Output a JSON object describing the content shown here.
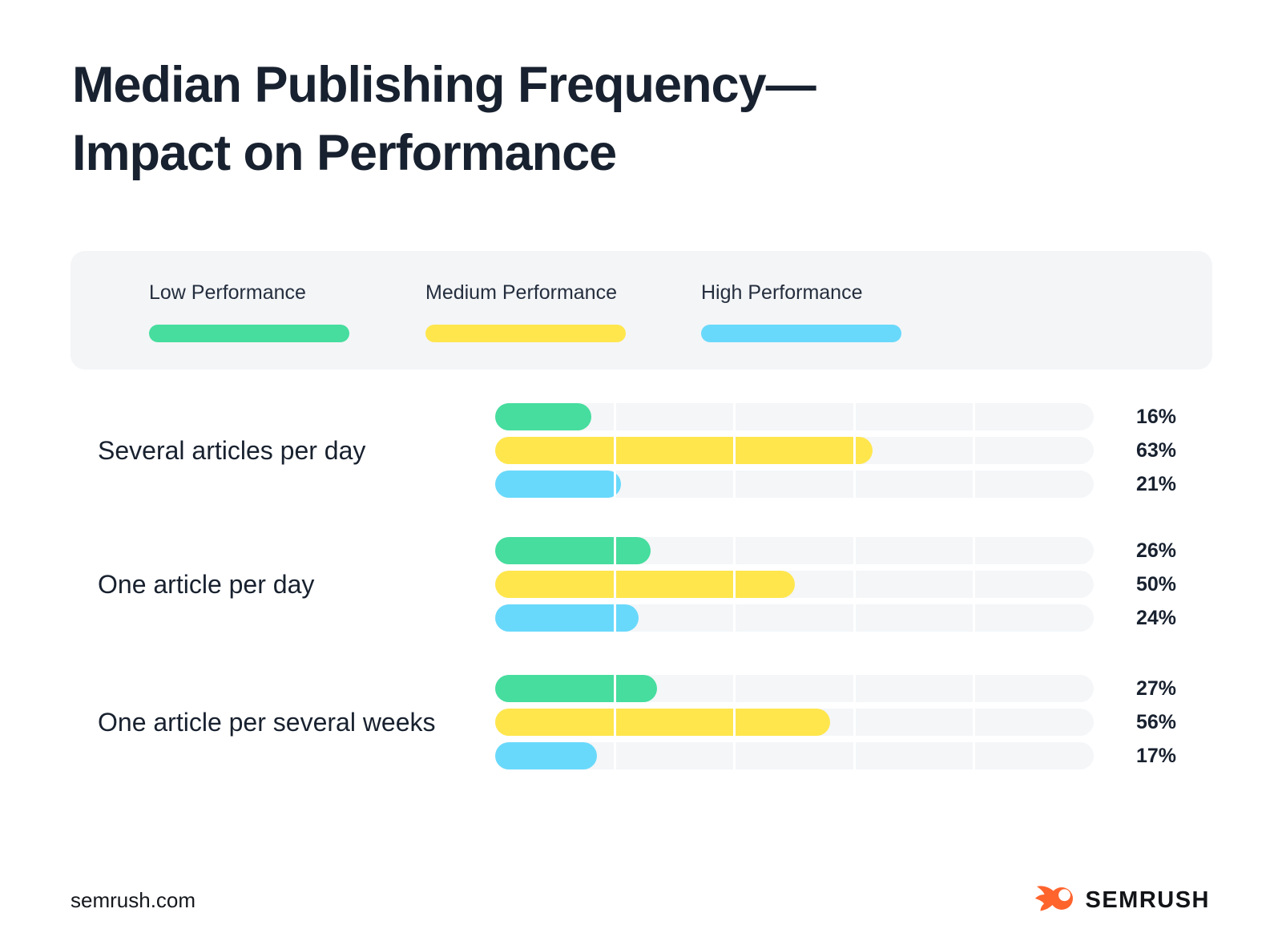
{
  "title": {
    "line1": "Median Publishing Frequency—",
    "line2": "Impact on Performance"
  },
  "legend": {
    "items": [
      {
        "label": "Low Performance",
        "color": "#46DD9E"
      },
      {
        "label": "Medium Performance",
        "color": "#FFE64D"
      },
      {
        "label": "High Performance",
        "color": "#69D9FB"
      }
    ]
  },
  "chart_data": {
    "type": "bar",
    "orientation": "horizontal",
    "title": "Median Publishing Frequency—Impact on Performance",
    "categories": [
      "Several articles per day",
      "One article per day",
      "One article per several weeks"
    ],
    "series": [
      {
        "name": "Low Performance",
        "key": "low",
        "color": "#46DD9E",
        "values": [
          16,
          26,
          27
        ]
      },
      {
        "name": "Medium Performance",
        "key": "medium",
        "color": "#FFE64D",
        "values": [
          63,
          50,
          56
        ]
      },
      {
        "name": "High Performance",
        "key": "high",
        "color": "#69D9FB",
        "values": [
          21,
          24,
          17
        ]
      }
    ],
    "value_suffix": "%",
    "xlim": [
      0,
      100
    ],
    "gridlines_pct": [
      20,
      40,
      60,
      80
    ],
    "grid": true,
    "track_color": "#F4F6F8",
    "legend_position": "top"
  },
  "footer": {
    "website": "semrush.com",
    "brand": "SEMRUSH",
    "brand_color": "#FF642D"
  }
}
